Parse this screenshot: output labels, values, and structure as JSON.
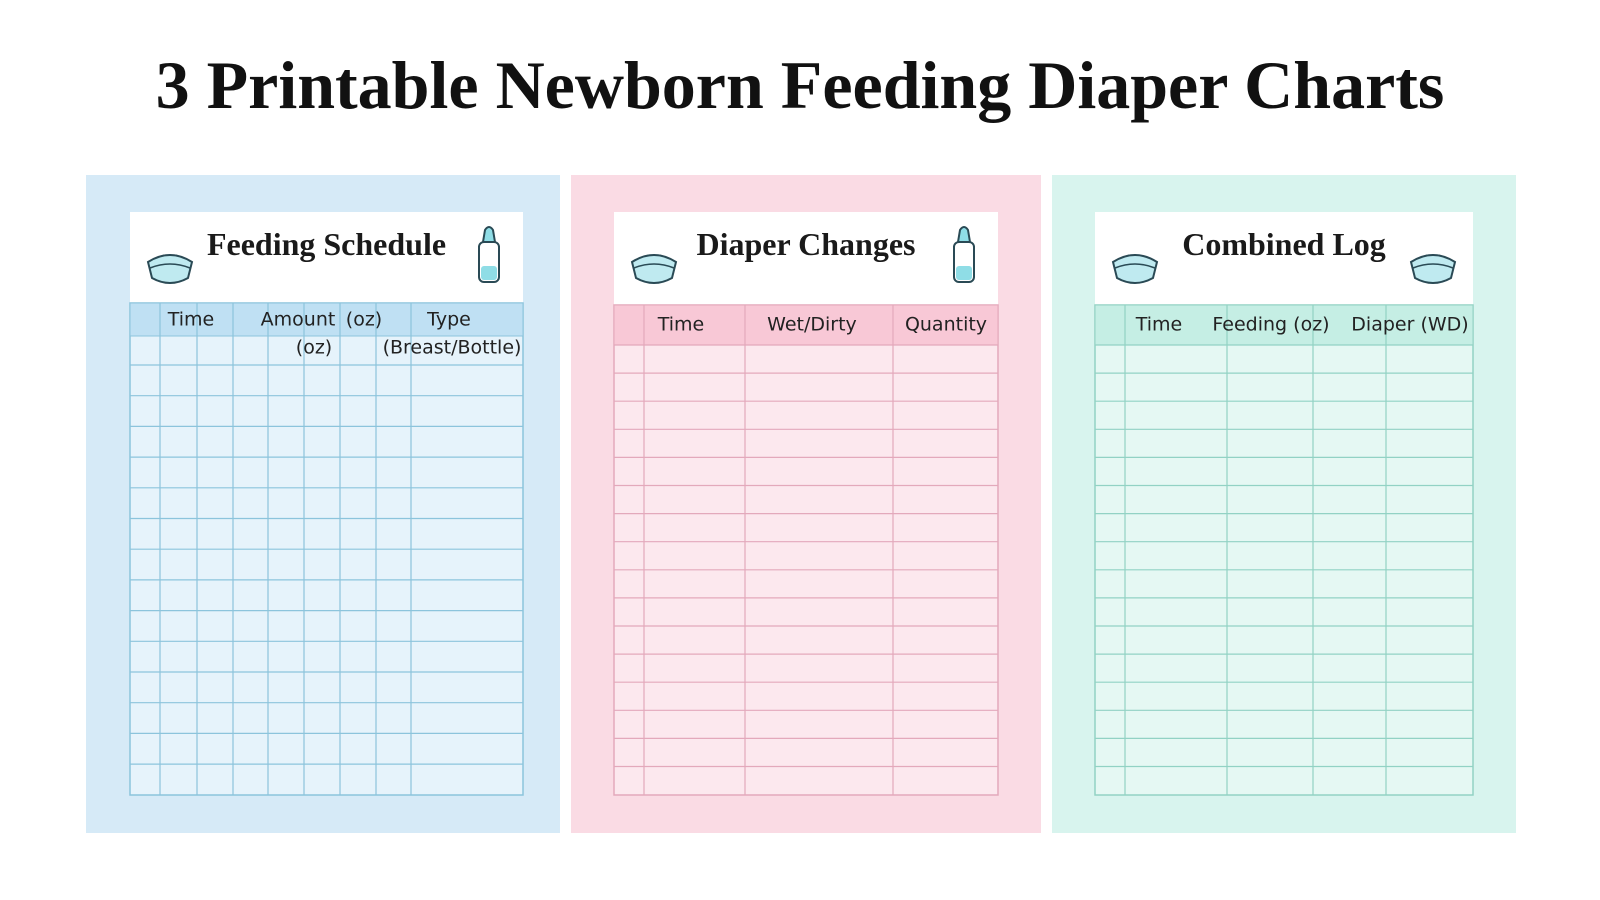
{
  "header": {
    "title": "3 Printable Newborn Feeding Diaper Charts"
  },
  "cards": [
    {
      "title": "Feeding Schedule",
      "headers": [
        "Time",
        "Amount",
        "(oz)",
        "Type"
      ],
      "subheaders": [
        "(oz)",
        "(Breast/Bottle)"
      ]
    },
    {
      "title": "Diaper Changes",
      "headers": [
        "Time",
        "Wet/Dirty",
        "Quantity"
      ]
    },
    {
      "title": "Combined Log",
      "headers": [
        "Time",
        "Feeding (oz)",
        "Diaper (WD)"
      ]
    }
  ]
}
